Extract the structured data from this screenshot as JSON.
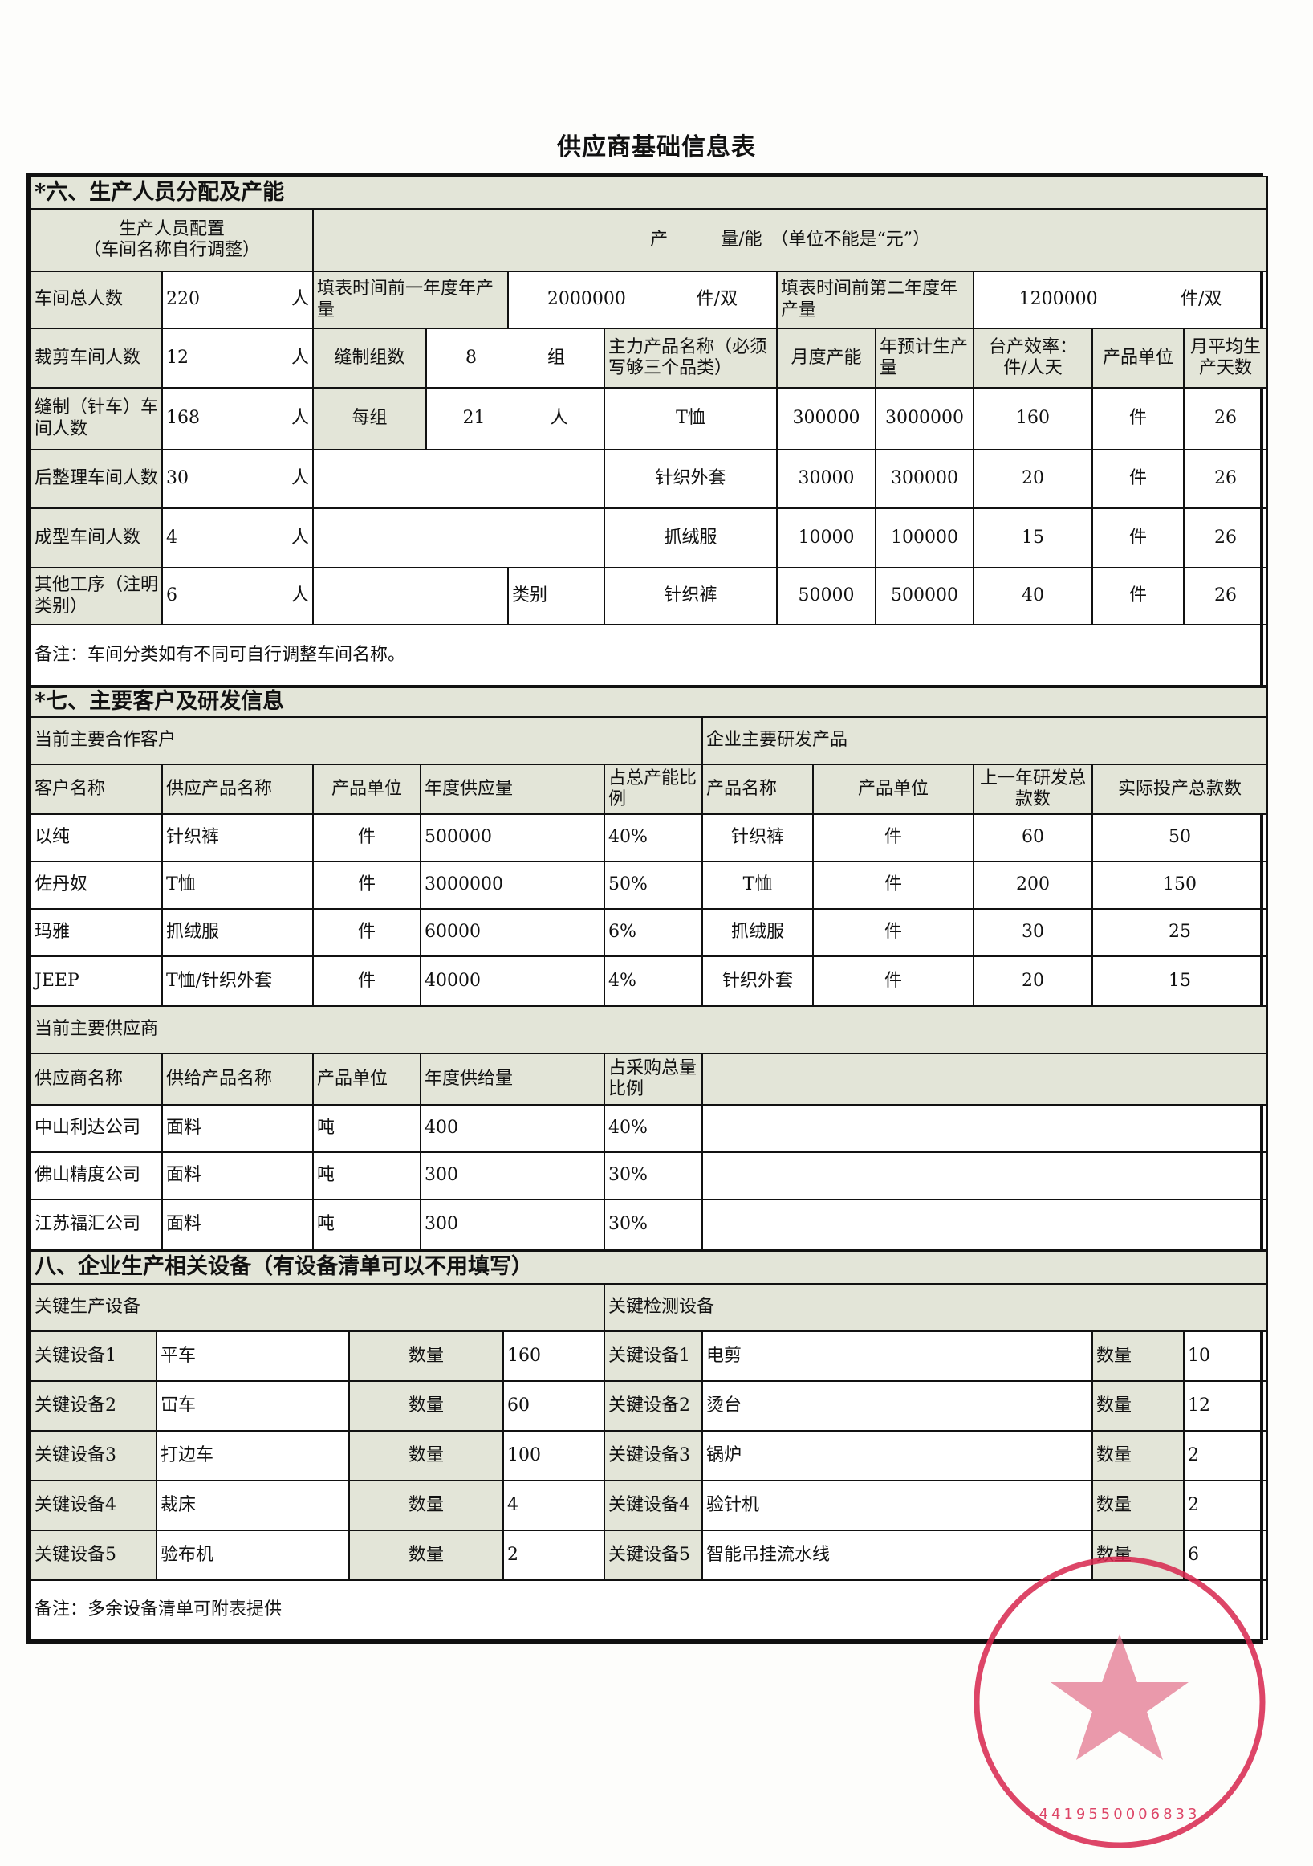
{
  "title": "供应商基础信息表",
  "section6": {
    "title": "*六、生产人员分配及产能",
    "staff_header": [
      "生产人员配置",
      "（车间名称自行调整）"
    ],
    "capacity_header": "产　　　量/能　（单位不能是“元”）",
    "total": {
      "label": "车间总人数",
      "value": "220",
      "unit": "人"
    },
    "prev_year": {
      "label": "填表时间前一年度年产量",
      "value": "2000000",
      "unit": "件/双"
    },
    "prev2_year": {
      "label": "填表时间前第二年度年产量",
      "value": "1200000",
      "unit": "件/双"
    },
    "groups": {
      "label": "缝制组数",
      "value": "8",
      "unit": "组"
    },
    "per_group": {
      "label": "每组",
      "value": "21",
      "unit": "人"
    },
    "other_category_label": "类别",
    "workshops": [
      {
        "label": "裁剪车间人数",
        "value": "12",
        "unit": "人"
      },
      {
        "label": "缝制（针车）车间人数",
        "value": "168",
        "unit": "人"
      },
      {
        "label": "后整理车间人数",
        "value": "30",
        "unit": "人"
      },
      {
        "label": "成型车间人数",
        "value": "4",
        "unit": "人"
      },
      {
        "label": "其他工序（注明类别）",
        "value": "6",
        "unit": "人"
      }
    ],
    "product_headers": [
      "主力产品名称（必须写够三个品类）",
      "月度产能",
      "年预计生产量",
      "台产效率：件/人天",
      "产品单位",
      "月平均生产天数"
    ],
    "products": [
      [
        "T恤",
        "300000",
        "3000000",
        "160",
        "件",
        "26"
      ],
      [
        "针织外套",
        "30000",
        "300000",
        "20",
        "件",
        "26"
      ],
      [
        "抓绒服",
        "10000",
        "100000",
        "15",
        "件",
        "26"
      ],
      [
        "针织裤",
        "50000",
        "500000",
        "40",
        "件",
        "26"
      ]
    ],
    "note": "备注：车间分类如有不同可自行调整车间名称。"
  },
  "section7": {
    "title": "*七、主要客户及研发信息",
    "customers_title": "当前主要合作客户",
    "rd_title": "企业主要研发产品",
    "customer_headers": [
      "客户名称",
      "供应产品名称",
      "产品单位",
      "年度供应量",
      "占总产能比例"
    ],
    "rd_headers": [
      "产品名称",
      "产品单位",
      "上一年研发总款数",
      "实际投产总款数"
    ],
    "customers": [
      [
        "以纯",
        "针织裤",
        "件",
        "500000",
        "40%"
      ],
      [
        "佐丹奴",
        "T恤",
        "件",
        "3000000",
        "50%"
      ],
      [
        "玛雅",
        "抓绒服",
        "件",
        "60000",
        "6%"
      ],
      [
        "JEEP",
        "T恤/针织外套",
        "件",
        "40000",
        "4%"
      ]
    ],
    "rd_products": [
      [
        "针织裤",
        "件",
        "60",
        "50"
      ],
      [
        "T恤",
        "件",
        "200",
        "150"
      ],
      [
        "抓绒服",
        "件",
        "30",
        "25"
      ],
      [
        "针织外套",
        "件",
        "20",
        "15"
      ]
    ],
    "suppliers_title": "当前主要供应商",
    "supplier_headers": [
      "供应商名称",
      "供给产品名称",
      "产品单位",
      "年度供给量",
      "占采购总量比例"
    ],
    "suppliers": [
      [
        "中山利达公司",
        "面料",
        "吨",
        "400",
        "40%"
      ],
      [
        "佛山精度公司",
        "面料",
        "吨",
        "300",
        "30%"
      ],
      [
        "江苏福汇公司",
        "面料",
        "吨",
        "300",
        "30%"
      ]
    ]
  },
  "section8": {
    "title": "八、企业生产相关设备（有设备清单可以不用填写）",
    "production_title": "关键生产设备",
    "testing_title": "关键检测设备",
    "qty_label": "数量",
    "production": [
      {
        "label": "关键设备1",
        "name": "平车",
        "qty": "160"
      },
      {
        "label": "关键设备2",
        "name": "冚车",
        "qty": "60"
      },
      {
        "label": "关键设备3",
        "name": "打边车",
        "qty": "100"
      },
      {
        "label": "关键设备4",
        "name": "裁床",
        "qty": "4"
      },
      {
        "label": "关键设备5",
        "name": "验布机",
        "qty": "2"
      }
    ],
    "testing": [
      {
        "label": "关键设备1",
        "name": "电剪",
        "qty": "10"
      },
      {
        "label": "关键设备2",
        "name": "烫台",
        "qty": "12"
      },
      {
        "label": "关键设备3",
        "name": "锅炉",
        "qty": "2"
      },
      {
        "label": "关键设备4",
        "name": "验针机",
        "qty": "2"
      },
      {
        "label": "关键设备5",
        "name": "智能吊挂流水线",
        "qty": "6"
      }
    ],
    "note": "备注：多余设备清单可附表提供"
  },
  "seal": {
    "number": "4419550006833",
    "color": "#d8264e"
  },
  "colors": {
    "label_fill": "#e3e5d8",
    "border": "#111111"
  }
}
